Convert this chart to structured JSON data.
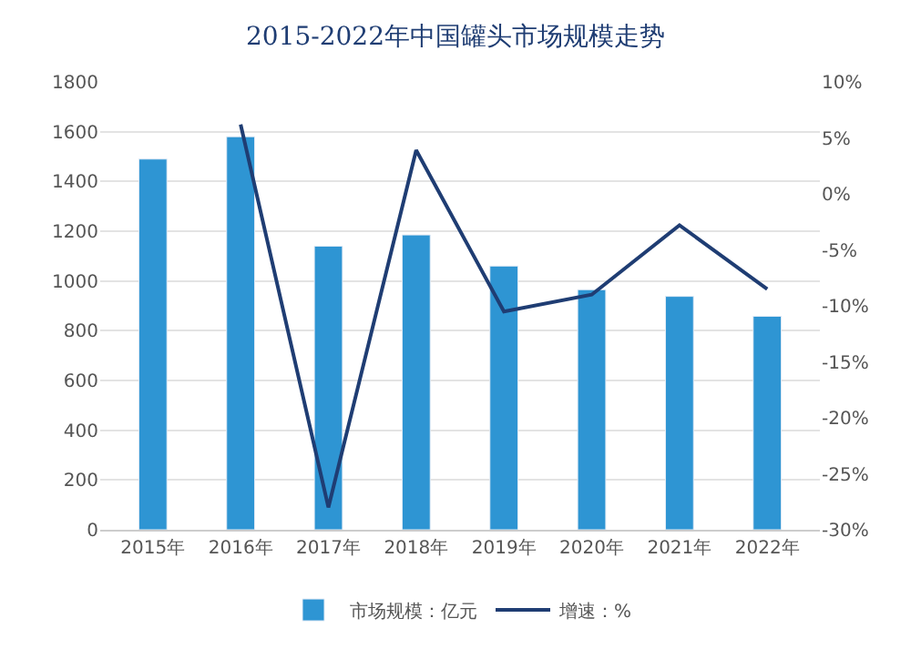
{
  "chart_data": {
    "type": "bar",
    "title": "2015-2022年中国罐头市场规模走势",
    "categories": [
      "2015年",
      "2016年",
      "2017年",
      "2018年",
      "2019年",
      "2020年",
      "2021年",
      "2022年"
    ],
    "series": [
      {
        "name": "市场规模：亿元",
        "color": "#2e95d3",
        "values": [
          1490,
          1580,
          1140,
          1185,
          1060,
          965,
          938,
          858
        ]
      },
      {
        "name": "增速：%",
        "type": "line",
        "axis": "y2",
        "color": "#1f3d73",
        "values": [
          null,
          6.2,
          -28,
          3.9,
          -10.5,
          -9,
          -2.8,
          -8.5
        ]
      }
    ],
    "ylim": [
      0,
      1800
    ],
    "yticks": [
      0,
      200,
      400,
      600,
      800,
      1000,
      1200,
      1400,
      1600,
      1800
    ],
    "y2lim": [
      -30,
      10
    ],
    "y2ticks": [
      {
        "value": -30,
        "label": "-30%"
      },
      {
        "value": -25,
        "label": "-25%"
      },
      {
        "value": -20,
        "label": "-20%"
      },
      {
        "value": -15,
        "label": "-15%"
      },
      {
        "value": -10,
        "label": "-10%"
      },
      {
        "value": -5,
        "label": "-5%"
      },
      {
        "value": 0,
        "label": "0%"
      },
      {
        "value": 5,
        "label": "5%"
      },
      {
        "value": 10,
        "label": "10%"
      }
    ],
    "grid": "y",
    "legend": "bottom",
    "marker": "none",
    "line_style": "solid"
  }
}
